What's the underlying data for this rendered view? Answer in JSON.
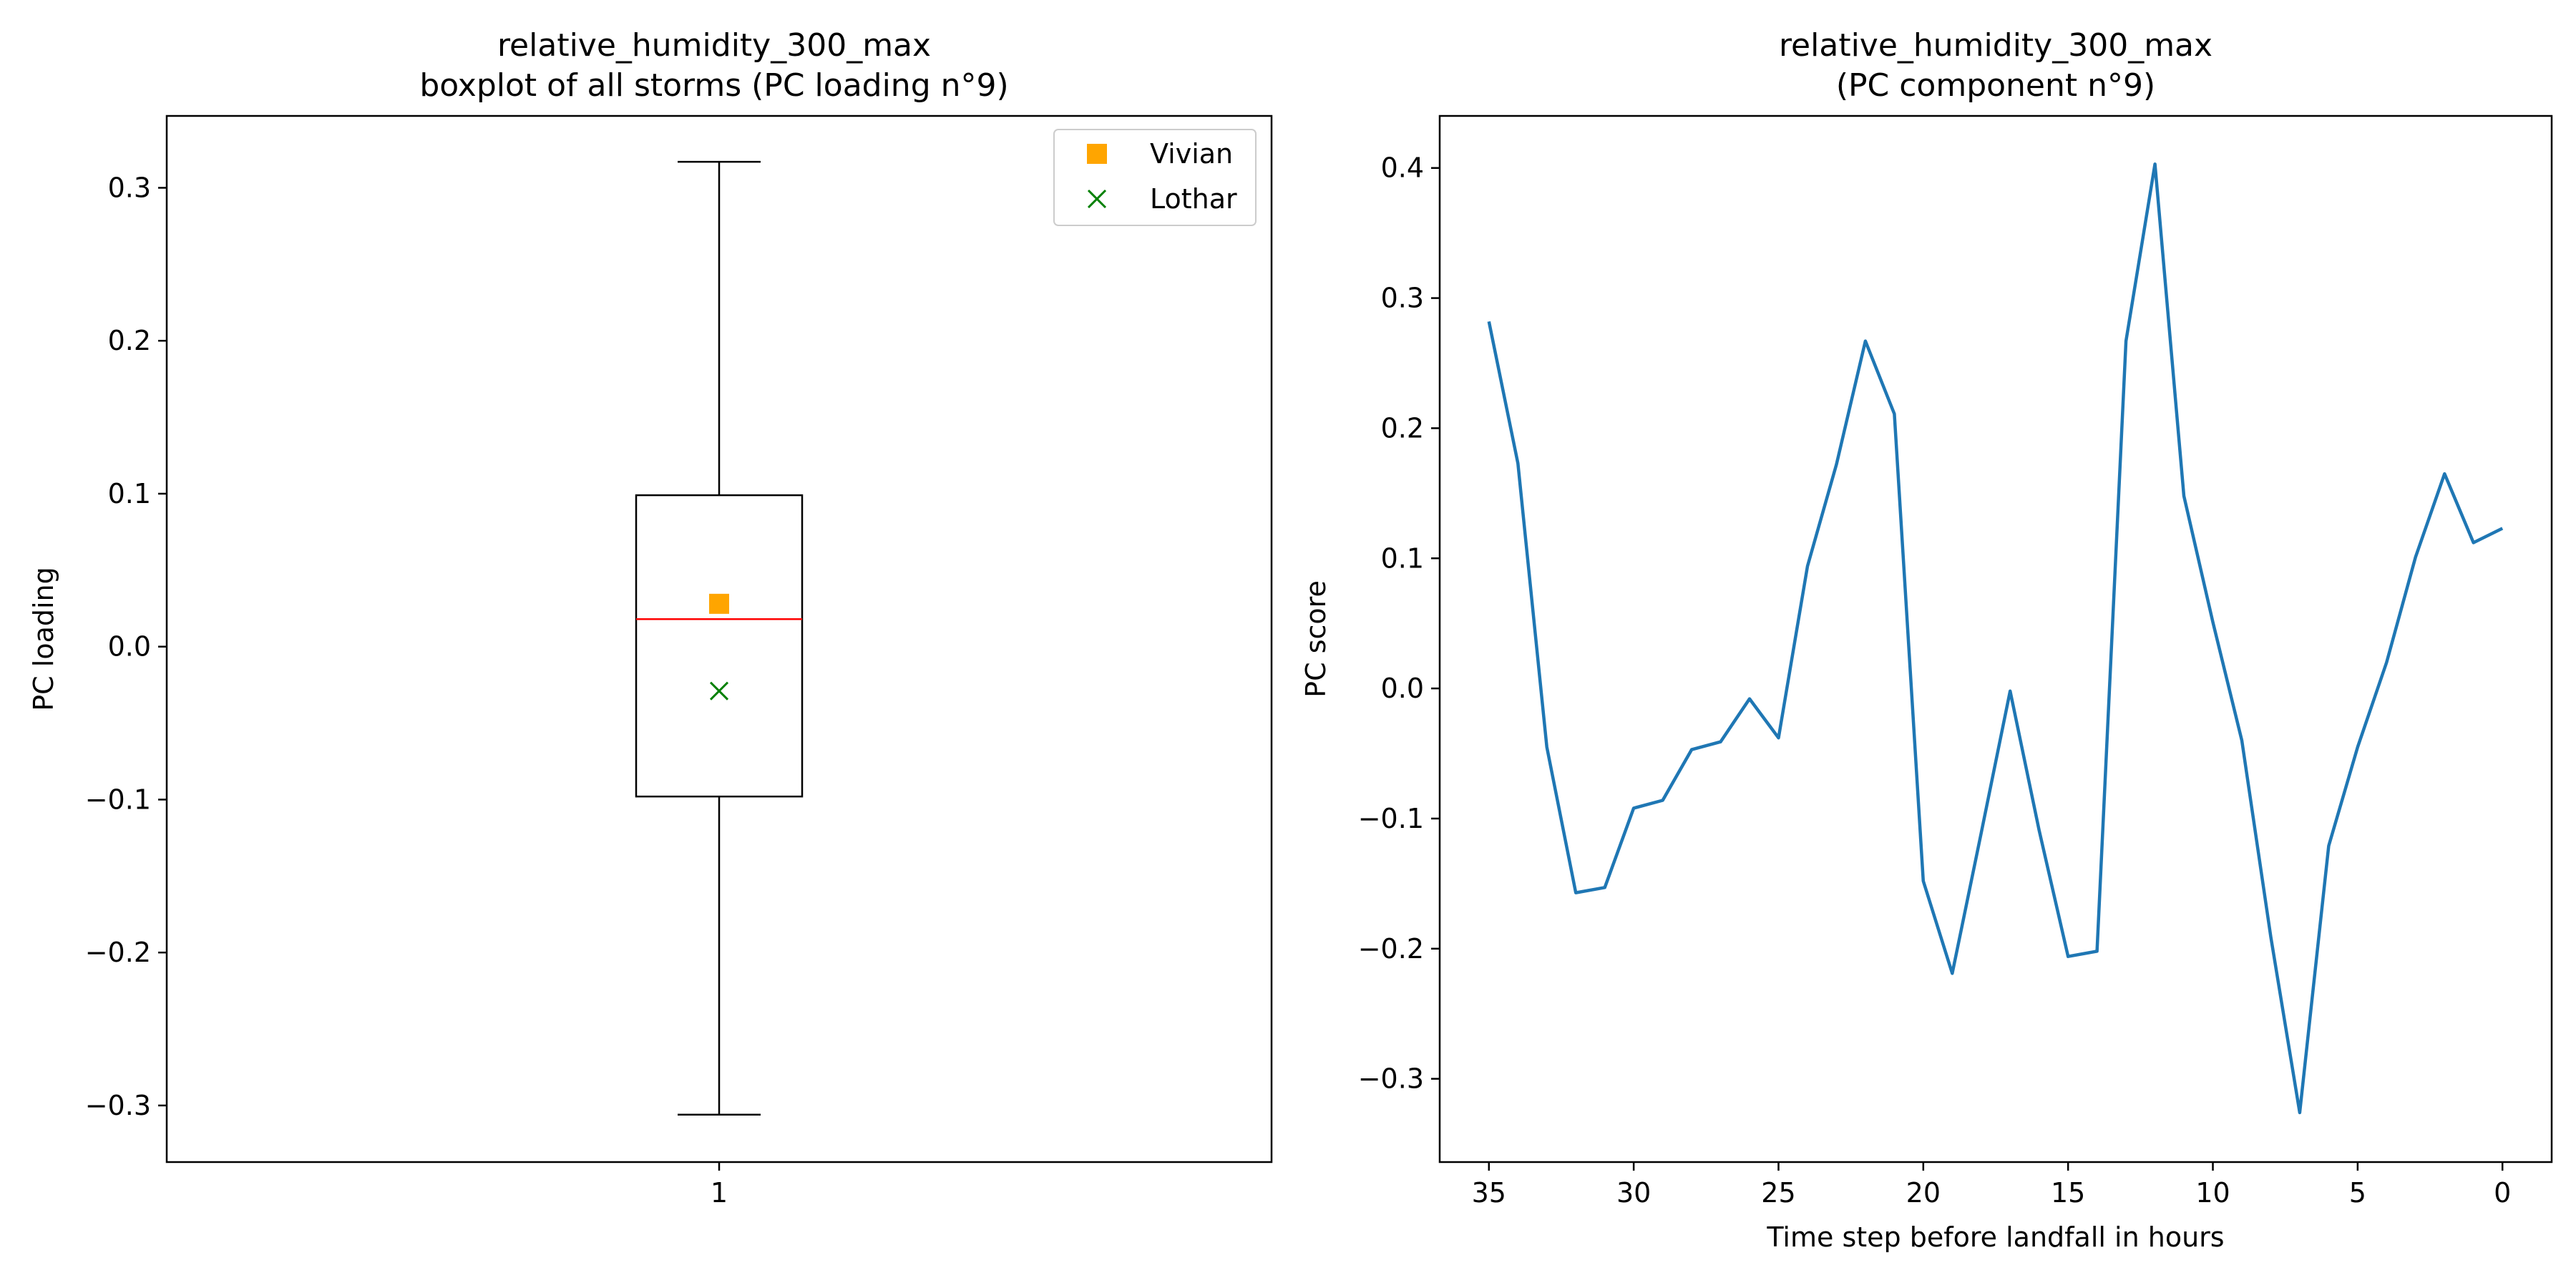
{
  "chart_data": [
    {
      "type": "boxplot",
      "title_line1": "relative_humidity_300_max",
      "title_line2": "boxplot of all storms (PC loading n°9)",
      "xlabel": "",
      "ylabel": "PC loading",
      "ylim": [
        -0.337,
        0.347
      ],
      "yticks": [
        -0.3,
        -0.2,
        -0.1,
        0.0,
        0.1,
        0.2,
        0.3
      ],
      "ytick_labels": [
        "−0.3",
        "−0.2",
        "−0.1",
        "0.0",
        "0.1",
        "0.2",
        "0.3"
      ],
      "xtick_labels": [
        "1"
      ],
      "box": {
        "position": 1,
        "whisker_low": -0.306,
        "q1": -0.098,
        "median": 0.018,
        "q3": 0.099,
        "whisker_high": 0.317
      },
      "markers": [
        {
          "name": "Vivian",
          "value": 0.028,
          "symbol": "square",
          "color": "#ffa500"
        },
        {
          "name": "Lothar",
          "value": -0.029,
          "symbol": "x",
          "color": "#008000"
        }
      ],
      "legend_position": "upper right",
      "median_color": "#ff0000",
      "grid": false
    },
    {
      "type": "line",
      "title_line1": "relative_humidity_300_max",
      "title_line2": "(PC component n°9)",
      "xlabel": "Time step before landfall in hours",
      "ylabel": "PC score",
      "xlim": [
        36.7,
        -1.7
      ],
      "ylim": [
        -0.364,
        0.44
      ],
      "xticks": [
        35,
        30,
        25,
        20,
        15,
        10,
        5,
        0
      ],
      "yticks": [
        -0.3,
        -0.2,
        -0.1,
        0.0,
        0.1,
        0.2,
        0.3,
        0.4
      ],
      "ytick_labels": [
        "−0.3",
        "−0.2",
        "−0.1",
        "0.0",
        "0.1",
        "0.2",
        "0.3",
        "0.4"
      ],
      "x": [
        35,
        34,
        33,
        32,
        31,
        30,
        29,
        28,
        27,
        26,
        25,
        24,
        23,
        22,
        21,
        20,
        19,
        18,
        17,
        16,
        15,
        14,
        13,
        12,
        11,
        10,
        9,
        8,
        7,
        6,
        5,
        4,
        3,
        2,
        1,
        0
      ],
      "y": [
        0.282,
        0.173,
        -0.045,
        -0.157,
        -0.153,
        -0.092,
        -0.086,
        -0.047,
        -0.041,
        -0.008,
        -0.038,
        0.094,
        0.172,
        0.267,
        0.211,
        -0.148,
        -0.219,
        -0.111,
        -0.002,
        -0.109,
        -0.206,
        -0.202,
        0.267,
        0.403,
        0.148,
        0.051,
        -0.04,
        -0.191,
        -0.326,
        -0.121,
        -0.045,
        0.02,
        0.101,
        0.165,
        0.112,
        0.123
      ],
      "line_color": "#1f77b4",
      "grid": false
    }
  ]
}
